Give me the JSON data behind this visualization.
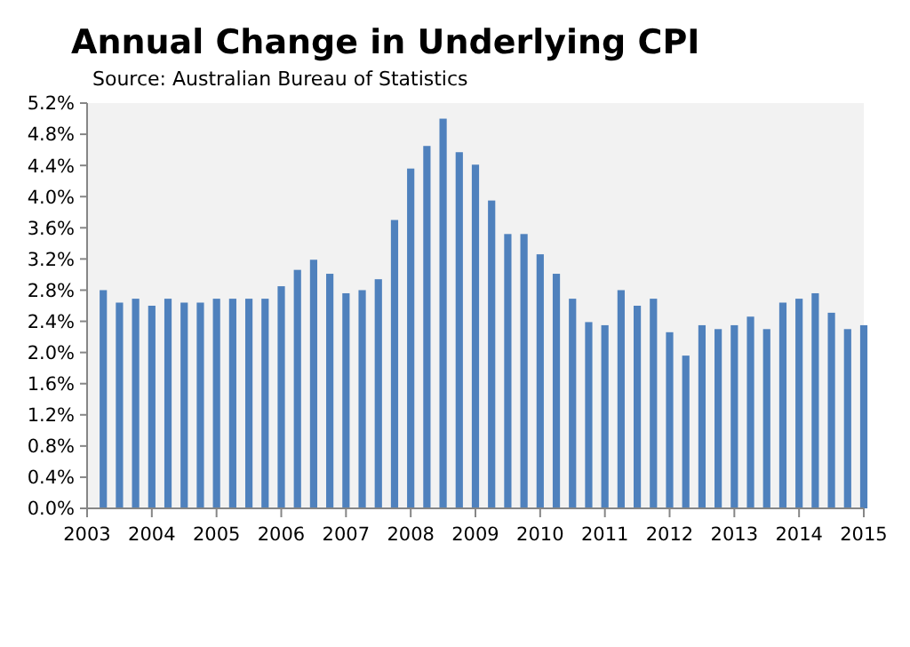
{
  "chart_data": {
    "type": "bar",
    "title": "Annual Change in Underlying CPI",
    "subtitle": "Source: Australian Bureau of Statistics",
    "x": [
      2003.25,
      2003.5,
      2003.75,
      2004,
      2004.25,
      2004.5,
      2004.75,
      2005,
      2005.25,
      2005.5,
      2005.75,
      2006,
      2006.25,
      2006.5,
      2006.75,
      2007,
      2007.25,
      2007.5,
      2007.75,
      2008,
      2008.25,
      2008.5,
      2008.75,
      2009,
      2009.25,
      2009.5,
      2009.75,
      2010,
      2010.25,
      2010.5,
      2010.75,
      2011,
      2011.25,
      2011.5,
      2011.75,
      2012,
      2012.25,
      2012.5,
      2012.75,
      2013,
      2013.25,
      2013.5,
      2013.75,
      2014,
      2014.25,
      2014.5,
      2014.75,
      2015
    ],
    "values": [
      2.8,
      2.64,
      2.69,
      2.6,
      2.69,
      2.64,
      2.64,
      2.69,
      2.69,
      2.69,
      2.69,
      2.85,
      3.06,
      3.19,
      3.01,
      2.76,
      2.8,
      2.94,
      3.7,
      4.36,
      4.65,
      5.0,
      4.57,
      4.41,
      3.95,
      3.52,
      3.52,
      3.26,
      3.01,
      2.69,
      2.39,
      2.35,
      2.8,
      2.6,
      2.69,
      2.26,
      1.96,
      2.35,
      2.3,
      2.35,
      2.46,
      2.3,
      2.64,
      2.69,
      2.76,
      2.51,
      2.3,
      2.35
    ],
    "color": "#4f81bd",
    "xlim": [
      2003,
      2015
    ],
    "xticks": [
      2003,
      2004,
      2005,
      2006,
      2007,
      2008,
      2009,
      2010,
      2011,
      2012,
      2013,
      2014,
      2015
    ],
    "ylim": [
      0,
      5.2
    ],
    "yticks": [
      {
        "value": 0,
        "label": "0.0%"
      },
      {
        "value": 0.4,
        "label": "0.4%"
      },
      {
        "value": 0.8,
        "label": "0.8%"
      },
      {
        "value": 1.2,
        "label": "1.2%"
      },
      {
        "value": 1.6,
        "label": "1.6%"
      },
      {
        "value": 2.0,
        "label": "2.0%"
      },
      {
        "value": 2.4,
        "label": "2.4%"
      },
      {
        "value": 2.8,
        "label": "2.8%"
      },
      {
        "value": 3.2,
        "label": "3.2%"
      },
      {
        "value": 3.6,
        "label": "3.6%"
      },
      {
        "value": 4.0,
        "label": "4.0%"
      },
      {
        "value": 4.4,
        "label": "4.4%"
      },
      {
        "value": 4.8,
        "label": "4.8%"
      },
      {
        "value": 5.2,
        "label": "5.2%"
      }
    ],
    "grid": false
  }
}
